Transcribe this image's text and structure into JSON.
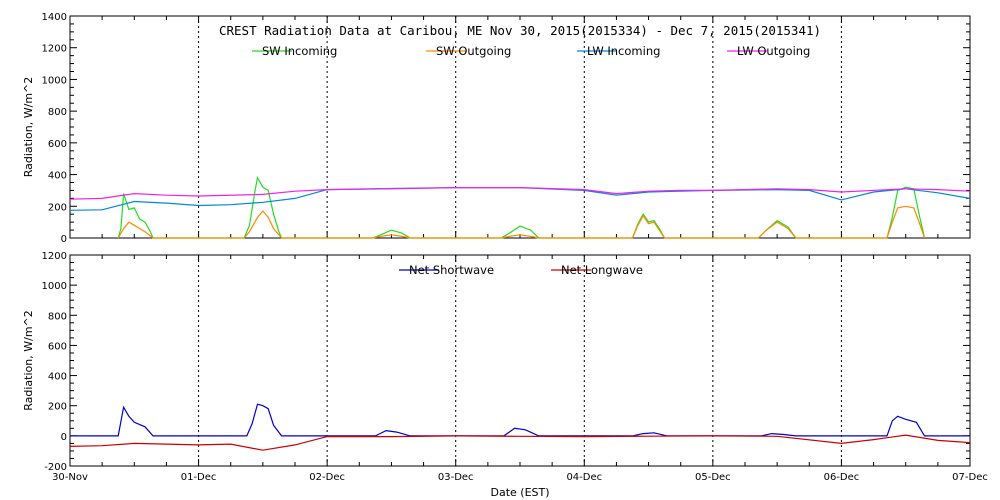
{
  "chart_data": [
    {
      "type": "line",
      "title": "CREST Radiation Data at Caribou, ME   Nov 30, 2015(2015334) - Dec  7, 2015(2015341)",
      "ylabel": "Radiation, W/m^2",
      "xlabel": "",
      "xlim": [
        "2015-11-30",
        "2015-12-07"
      ],
      "ylim": [
        0,
        1400
      ],
      "yticks": [
        0,
        200,
        400,
        600,
        800,
        1000,
        1200,
        1400
      ],
      "grid": true,
      "legend_position": "top-center",
      "series": [
        {
          "name": "SW Incoming",
          "color": "#22dd22",
          "x": [
            "2015-11-30T09:00",
            "2015-11-30T09:30",
            "2015-11-30T10:00",
            "2015-11-30T11:00",
            "2015-11-30T12:00",
            "2015-11-30T13:00",
            "2015-11-30T14:00",
            "2015-11-30T15:00",
            "2015-11-30T15:30",
            "2015-12-01T08:30",
            "2015-12-01T09:30",
            "2015-12-01T10:30",
            "2015-12-01T11:00",
            "2015-12-01T12:00",
            "2015-12-01T13:00",
            "2015-12-01T14:00",
            "2015-12-01T15:00",
            "2015-12-01T15:30",
            "2015-12-02T08:30",
            "2015-12-02T10:00",
            "2015-12-02T12:00",
            "2015-12-02T14:00",
            "2015-12-02T15:30",
            "2015-12-03T08:30",
            "2015-12-03T10:00",
            "2015-12-03T12:00",
            "2015-12-03T14:00",
            "2015-12-03T15:30",
            "2015-12-04T09:00",
            "2015-12-04T10:00",
            "2015-12-04T11:00",
            "2015-12-04T12:00",
            "2015-12-04T13:00",
            "2015-12-04T14:00",
            "2015-12-04T15:00",
            "2015-12-05T08:30",
            "2015-12-05T10:00",
            "2015-12-05T12:00",
            "2015-12-05T14:00",
            "2015-12-05T15:30",
            "2015-12-06T08:30",
            "2015-12-06T09:30",
            "2015-12-06T10:30",
            "2015-12-06T12:00",
            "2015-12-06T13:30",
            "2015-12-06T14:30",
            "2015-12-06T15:30"
          ],
          "values": [
            0,
            60,
            280,
            180,
            190,
            120,
            100,
            40,
            0,
            0,
            80,
            290,
            380,
            320,
            300,
            150,
            40,
            0,
            0,
            20,
            50,
            30,
            0,
            0,
            30,
            75,
            50,
            0,
            0,
            90,
            150,
            100,
            110,
            60,
            0,
            0,
            50,
            110,
            70,
            0,
            0,
            130,
            300,
            320,
            310,
            150,
            0
          ]
        },
        {
          "name": "SW Outgoing",
          "color": "#ff8800",
          "x": [
            "2015-11-30T09:00",
            "2015-11-30T10:00",
            "2015-11-30T11:00",
            "2015-11-30T12:00",
            "2015-11-30T13:00",
            "2015-11-30T14:00",
            "2015-11-30T15:30",
            "2015-12-01T08:30",
            "2015-12-01T09:30",
            "2015-12-01T11:00",
            "2015-12-01T12:00",
            "2015-12-01T13:00",
            "2015-12-01T14:00",
            "2015-12-01T15:30",
            "2015-12-02T08:30",
            "2015-12-02T10:00",
            "2015-12-02T12:00",
            "2015-12-02T14:00",
            "2015-12-02T15:30",
            "2015-12-03T08:30",
            "2015-12-03T10:00",
            "2015-12-03T12:00",
            "2015-12-03T14:00",
            "2015-12-03T15:30",
            "2015-12-04T09:00",
            "2015-12-04T10:00",
            "2015-12-04T11:00",
            "2015-12-04T12:00",
            "2015-12-04T13:00",
            "2015-12-04T14:00",
            "2015-12-04T15:00",
            "2015-12-05T08:30",
            "2015-12-05T10:00",
            "2015-12-05T12:00",
            "2015-12-05T14:00",
            "2015-12-05T15:30",
            "2015-12-06T08:30",
            "2015-12-06T09:30",
            "2015-12-06T10:30",
            "2015-12-06T12:00",
            "2015-12-06T13:30",
            "2015-12-06T14:30",
            "2015-12-06T15:30"
          ],
          "values": [
            0,
            60,
            100,
            80,
            60,
            40,
            0,
            0,
            40,
            130,
            170,
            130,
            60,
            0,
            0,
            10,
            20,
            10,
            0,
            0,
            10,
            20,
            10,
            0,
            0,
            80,
            140,
            90,
            100,
            50,
            0,
            0,
            50,
            100,
            60,
            0,
            0,
            100,
            190,
            200,
            190,
            100,
            0
          ]
        },
        {
          "name": "LW Incoming",
          "color": "#0088dd",
          "x": [
            "2015-11-30T00:00",
            "2015-11-30T06:00",
            "2015-11-30T12:00",
            "2015-11-30T18:00",
            "2015-12-01T00:00",
            "2015-12-01T06:00",
            "2015-12-01T12:00",
            "2015-12-01T18:00",
            "2015-12-02T00:00",
            "2015-12-02T12:00",
            "2015-12-03T00:00",
            "2015-12-03T12:00",
            "2015-12-04T00:00",
            "2015-12-04T06:00",
            "2015-12-04T12:00",
            "2015-12-04T18:00",
            "2015-12-05T00:00",
            "2015-12-05T12:00",
            "2015-12-05T18:00",
            "2015-12-06T00:00",
            "2015-12-06T06:00",
            "2015-12-06T12:00",
            "2015-12-06T18:00",
            "2015-12-07T00:00"
          ],
          "values": [
            175,
            178,
            230,
            220,
            205,
            210,
            225,
            250,
            305,
            312,
            318,
            318,
            300,
            270,
            290,
            295,
            300,
            305,
            300,
            240,
            290,
            310,
            285,
            250
          ]
        },
        {
          "name": "LW Outgoing",
          "color": "#ee22ee",
          "x": [
            "2015-11-30T00:00",
            "2015-11-30T06:00",
            "2015-11-30T12:00",
            "2015-11-30T18:00",
            "2015-12-01T00:00",
            "2015-12-01T12:00",
            "2015-12-01T18:00",
            "2015-12-02T00:00",
            "2015-12-02T12:00",
            "2015-12-03T00:00",
            "2015-12-03T12:00",
            "2015-12-04T00:00",
            "2015-12-04T06:00",
            "2015-12-04T12:00",
            "2015-12-04T18:00",
            "2015-12-05T00:00",
            "2015-12-05T12:00",
            "2015-12-05T18:00",
            "2015-12-06T00:00",
            "2015-12-06T12:00",
            "2015-12-06T18:00",
            "2015-12-07T00:00"
          ],
          "values": [
            245,
            250,
            280,
            270,
            265,
            275,
            295,
            305,
            310,
            318,
            318,
            305,
            280,
            295,
            300,
            300,
            310,
            305,
            290,
            310,
            305,
            295
          ]
        }
      ]
    },
    {
      "type": "line",
      "title": "",
      "ylabel": "Radiation, W/m^2",
      "xlabel": "Date (EST)",
      "xlim": [
        "2015-11-30",
        "2015-12-07"
      ],
      "ylim": [
        -200,
        1200
      ],
      "yticks": [
        -200,
        0,
        200,
        400,
        600,
        800,
        1000,
        1200
      ],
      "xtick_labels": [
        "30-Nov",
        "01-Dec",
        "02-Dec",
        "03-Dec",
        "04-Dec",
        "05-Dec",
        "06-Dec",
        "07-Dec"
      ],
      "grid": true,
      "legend_position": "top-center",
      "series": [
        {
          "name": "Net Shortwave",
          "color": "#0000cc",
          "x": [
            "2015-11-30T00:00",
            "2015-11-30T09:00",
            "2015-11-30T10:00",
            "2015-11-30T11:00",
            "2015-11-30T12:00",
            "2015-11-30T14:00",
            "2015-11-30T15:30",
            "2015-12-01T09:00",
            "2015-12-01T10:00",
            "2015-12-01T11:00",
            "2015-12-01T12:00",
            "2015-12-01T13:00",
            "2015-12-01T14:00",
            "2015-12-01T15:30",
            "2015-12-02T09:00",
            "2015-12-02T11:00",
            "2015-12-02T13:00",
            "2015-12-02T15:30",
            "2015-12-03T09:00",
            "2015-12-03T11:00",
            "2015-12-03T13:00",
            "2015-12-03T15:30",
            "2015-12-04T09:00",
            "2015-12-04T11:00",
            "2015-12-04T13:00",
            "2015-12-04T15:30",
            "2015-12-05T09:00",
            "2015-12-05T11:00",
            "2015-12-05T13:00",
            "2015-12-05T15:30",
            "2015-12-06T08:30",
            "2015-12-06T09:30",
            "2015-12-06T10:30",
            "2015-12-06T12:00",
            "2015-12-06T14:00",
            "2015-12-06T15:30",
            "2015-12-07T00:00"
          ],
          "values": [
            0,
            0,
            190,
            130,
            90,
            60,
            0,
            0,
            80,
            210,
            200,
            180,
            70,
            0,
            0,
            35,
            25,
            0,
            0,
            50,
            40,
            0,
            0,
            15,
            20,
            0,
            0,
            15,
            10,
            0,
            0,
            100,
            130,
            110,
            90,
            0,
            0
          ]
        },
        {
          "name": "Net Longwave",
          "color": "#cc0000",
          "x": [
            "2015-11-30T00:00",
            "2015-11-30T06:00",
            "2015-11-30T12:00",
            "2015-11-30T18:00",
            "2015-12-01T00:00",
            "2015-12-01T06:00",
            "2015-12-01T12:00",
            "2015-12-01T18:00",
            "2015-12-02T00:00",
            "2015-12-02T12:00",
            "2015-12-03T00:00",
            "2015-12-03T12:00",
            "2015-12-04T00:00",
            "2015-12-04T12:00",
            "2015-12-05T00:00",
            "2015-12-05T12:00",
            "2015-12-06T00:00",
            "2015-12-06T06:00",
            "2015-12-06T12:00",
            "2015-12-06T18:00",
            "2015-12-07T00:00"
          ],
          "values": [
            -70,
            -65,
            -50,
            -55,
            -60,
            -55,
            -95,
            -60,
            -5,
            -5,
            0,
            -3,
            -5,
            -2,
            0,
            -3,
            -50,
            -25,
            5,
            -30,
            -45
          ]
        }
      ]
    }
  ]
}
